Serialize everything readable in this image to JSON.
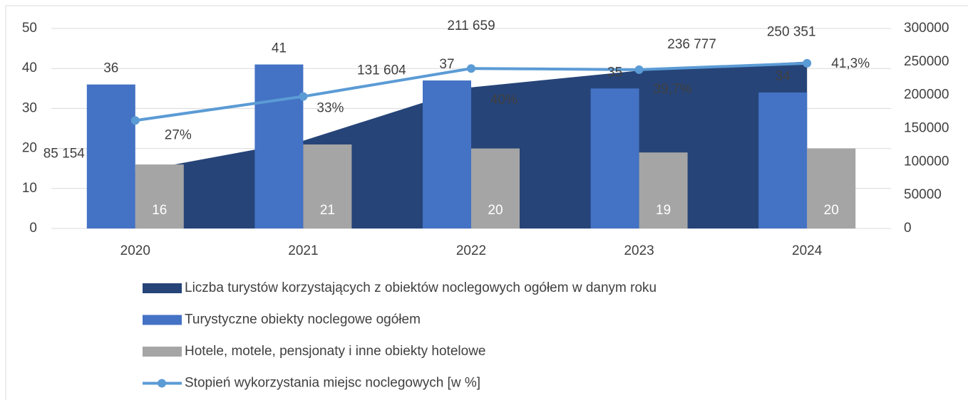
{
  "chart_data": {
    "type": "combo",
    "categories": [
      "2020",
      "2021",
      "2022",
      "2023",
      "2024"
    ],
    "series": [
      {
        "name": "Liczba turystów korzystających z obiektów noclegowych ogółem w danym roku",
        "type": "area",
        "axis": "y2",
        "color": "#264478",
        "values": [
          85154,
          131604,
          211659,
          236777,
          250351
        ],
        "value_labels": [
          "85 154",
          "131 604",
          "211 659",
          "236 777",
          "250 351"
        ]
      },
      {
        "name": "Turystyczne obiekty noclegowe ogółem",
        "type": "bar",
        "color": "#4472c4",
        "values": [
          36,
          41,
          37,
          35,
          34
        ]
      },
      {
        "name": "Hotele, motele, pensjonaty i inne obiekty hotelowe",
        "type": "bar",
        "color": "#a5a5a5",
        "values": [
          16,
          21,
          20,
          19,
          20
        ]
      },
      {
        "name": "Stopień wykorzystania miejsc noclegowych [w %]",
        "type": "line",
        "color": "#5b9bd5",
        "values": [
          27,
          33,
          40,
          39.7,
          41.3
        ],
        "value_labels": [
          "27%",
          "33%",
          "40%",
          "39,7%",
          "41,3%"
        ]
      }
    ],
    "ylim": [
      0,
      50
    ],
    "yticks": [
      0,
      10,
      20,
      30,
      40,
      50
    ],
    "y2lim": [
      0,
      300000
    ],
    "y2ticks": [
      0,
      50000,
      100000,
      150000,
      200000,
      250000,
      300000
    ],
    "grid": true,
    "legend": "bottom"
  }
}
